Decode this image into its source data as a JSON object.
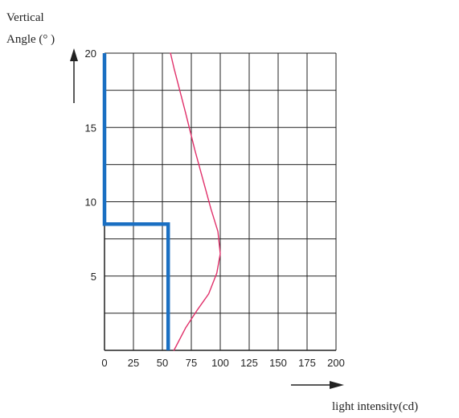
{
  "chart_data": {
    "type": "line",
    "ylabel_line1": "Vertical",
    "ylabel_line2": "Angle (°  )",
    "xlabel": "light intensity(cd)",
    "xlim": [
      0,
      200
    ],
    "ylim": [
      0,
      20
    ],
    "x_ticks": [
      "0",
      "25",
      "50",
      "75",
      "100",
      "125",
      "150",
      "175",
      "200"
    ],
    "y_ticks": [
      "5",
      "10",
      "15",
      "20"
    ],
    "grid": true,
    "series": [
      {
        "color": "#1a6fc2",
        "points": [
          [
            0,
            20
          ],
          [
            0,
            8.5
          ],
          [
            55,
            8.5
          ],
          [
            55,
            0
          ]
        ]
      },
      {
        "color": "#e0306a",
        "points": [
          [
            60,
            0
          ],
          [
            70,
            1.5
          ],
          [
            80,
            2.7
          ],
          [
            90,
            3.8
          ],
          [
            97,
            5.2
          ],
          [
            100,
            6.5
          ],
          [
            98,
            8
          ],
          [
            92,
            9.5
          ],
          [
            85,
            11.5
          ],
          [
            78,
            13.5
          ],
          [
            70,
            16
          ],
          [
            60,
            19
          ],
          [
            57,
            20
          ]
        ]
      }
    ]
  }
}
